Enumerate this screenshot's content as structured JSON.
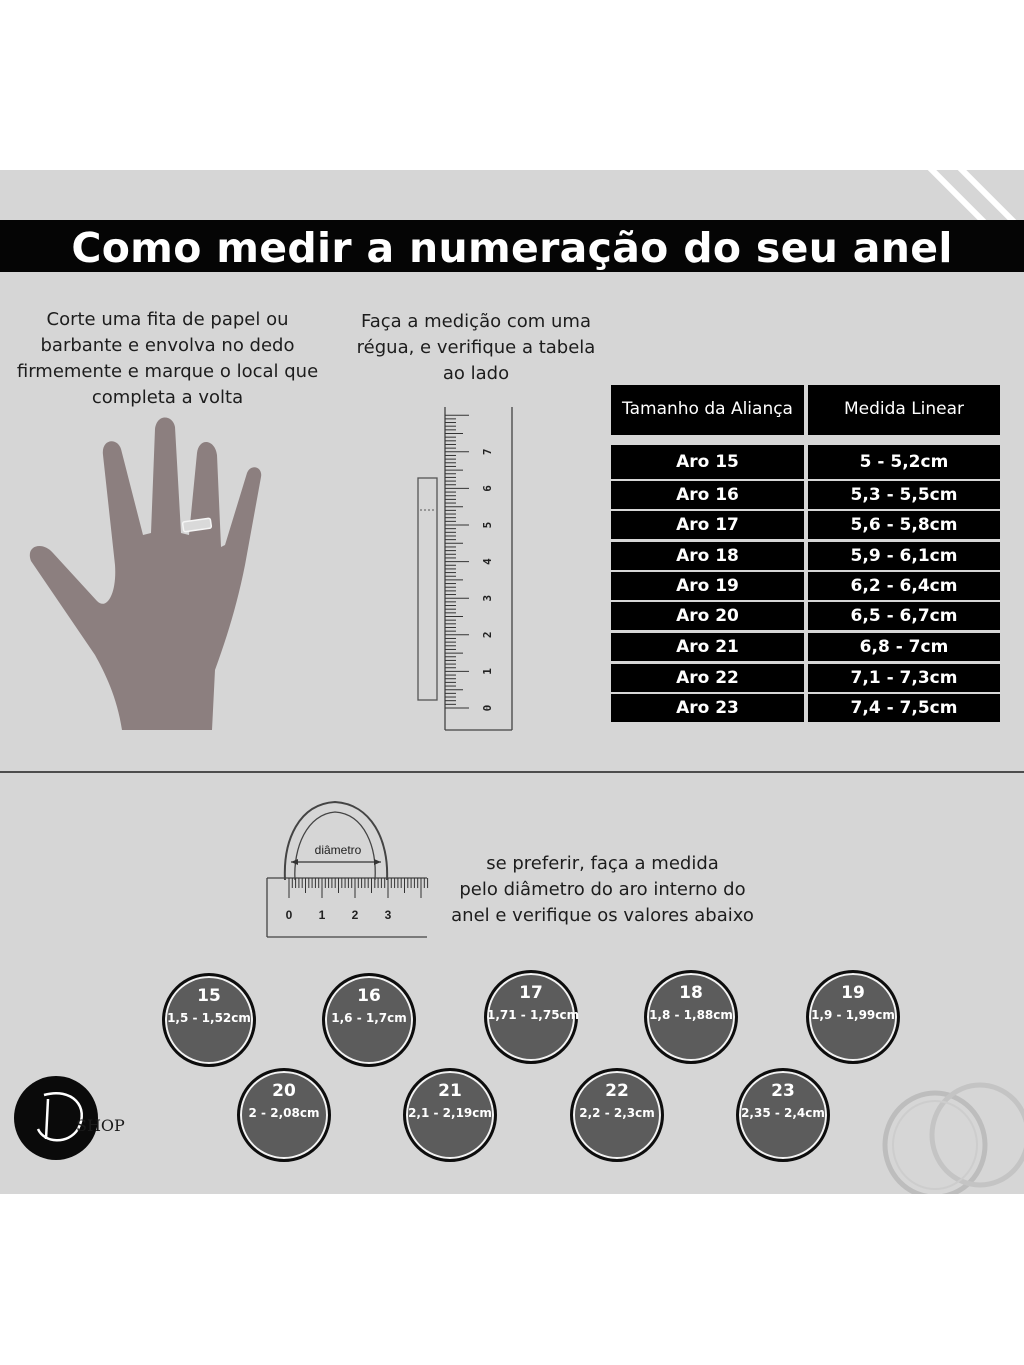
{
  "title": "Como medir a numeração do seu anel",
  "instructions": {
    "paper_strip": "Corte uma fita de papel ou\nbarbante e envolva no dedo\nfirmemente e marque o local que\ncompleta a volta",
    "ruler": "Faça a medição com uma\nrégua, e verifique a tabela\nao lado",
    "diameter": "se preferir, faça a medida\npelo diâmetro do aro interno do\nanel e verifique os valores abaixo"
  },
  "ruler_labels": [
    "0",
    "1",
    "2",
    "3",
    "4",
    "5",
    "6",
    "7"
  ],
  "diameter_diagram": {
    "label": "diâmetro",
    "ticks": [
      "0",
      "1",
      "2",
      "3"
    ]
  },
  "table": {
    "headers": [
      "Tamanho da Aliança",
      "Medida Linear"
    ],
    "rows": [
      {
        "size": "Aro  15",
        "measure": "5 - 5,2cm"
      },
      {
        "size": "Aro  16",
        "measure": "5,3 - 5,5cm"
      },
      {
        "size": "Aro  17",
        "measure": "5,6 - 5,8cm"
      },
      {
        "size": "Aro  18",
        "measure": "5,9 - 6,1cm"
      },
      {
        "size": "Aro  19",
        "measure": "6,2 - 6,4cm"
      },
      {
        "size": "Aro  20",
        "measure": "6,5 - 6,7cm"
      },
      {
        "size": "Aro  21",
        "measure": "6,8 - 7cm"
      },
      {
        "size": "Aro  22",
        "measure": "7,1 - 7,3cm"
      },
      {
        "size": "Aro  23",
        "measure": "7,4 - 7,5cm"
      }
    ]
  },
  "diameter_sizes": [
    {
      "number": "15",
      "range": "1,5 - 1,52cm"
    },
    {
      "number": "16",
      "range": "1,6 - 1,7cm"
    },
    {
      "number": "17",
      "range": "1,71 - 1,75cm"
    },
    {
      "number": "18",
      "range": "1,8 - 1,88cm"
    },
    {
      "number": "19",
      "range": "1,9 - 1,99cm"
    },
    {
      "number": "20",
      "range": "2 - 2,08cm"
    },
    {
      "number": "21",
      "range": "2,1 - 2,19cm"
    },
    {
      "number": "22",
      "range": "2,2 - 2,3cm"
    },
    {
      "number": "23",
      "range": "2,35 - 2,4cm"
    }
  ],
  "logo": {
    "text": "SHOP",
    "script": "Luz"
  },
  "colors": {
    "panel": "#d6d6d6",
    "banner": "#050505",
    "hand": "#8c7f7f",
    "circle": "#5c5c5c"
  }
}
